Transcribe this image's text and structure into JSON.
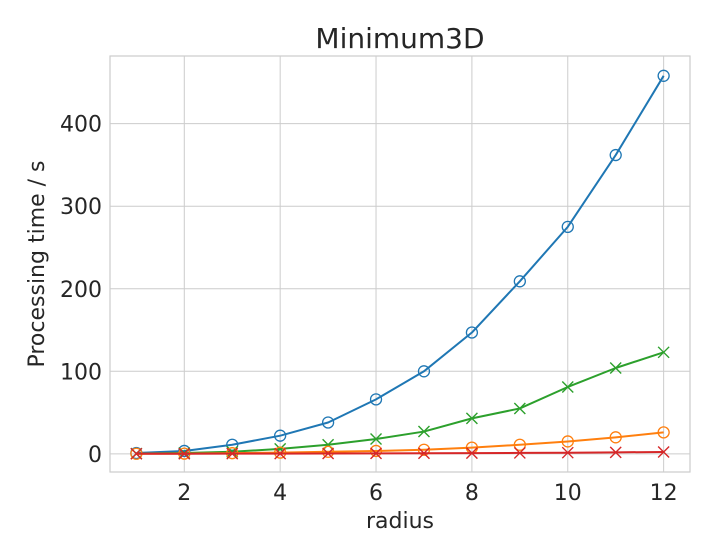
{
  "chart_data": {
    "type": "line",
    "title": "Minimum3D",
    "xlabel": "radius",
    "ylabel": "Processing time / s",
    "xlim": [
      0.45,
      12.55
    ],
    "ylim": [
      -22,
      482
    ],
    "x_ticks": [
      2,
      4,
      6,
      8,
      10,
      12
    ],
    "y_ticks": [
      0,
      100,
      200,
      300,
      400
    ],
    "grid": true,
    "x": [
      1,
      2,
      3,
      4,
      5,
      6,
      7,
      8,
      9,
      10,
      11,
      12
    ],
    "series": [
      {
        "color": "#1f77b4",
        "marker": "circle",
        "values": [
          1,
          3.5,
          11,
          22,
          38,
          66,
          100,
          147,
          209,
          275,
          362,
          458
        ]
      },
      {
        "color": "#2ca02c",
        "marker": "x",
        "values": [
          0.3,
          1,
          2.5,
          6,
          11,
          18,
          27,
          43,
          55,
          81,
          104,
          123
        ]
      },
      {
        "color": "#ff7f0e",
        "marker": "circle",
        "values": [
          0.1,
          0.3,
          0.8,
          1.5,
          2.5,
          3.5,
          5,
          7.5,
          11,
          15,
          20,
          26
        ]
      },
      {
        "color": "#d62728",
        "marker": "x",
        "values": [
          0.05,
          0.1,
          0.2,
          0.3,
          0.4,
          0.5,
          0.7,
          0.9,
          1.1,
          1.4,
          1.8,
          2.3
        ]
      }
    ]
  }
}
